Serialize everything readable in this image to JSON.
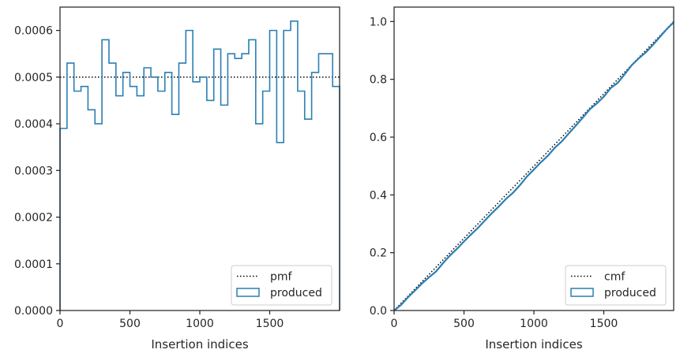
{
  "colors": {
    "produced": "#2b7fb3",
    "reference": "#000000",
    "axes": "#262626",
    "legend_border": "#cccccc"
  },
  "chart_data": [
    {
      "type": "step",
      "xlabel": "Insertion indices",
      "ylabel": "",
      "xlim": [
        0,
        2000
      ],
      "ylim": [
        0,
        0.00065
      ],
      "xticks": [
        0,
        500,
        1000,
        1500
      ],
      "xtick_labels": [
        "0",
        "500",
        "1000",
        "1500"
      ],
      "yticks": [
        0,
        0.0001,
        0.0002,
        0.0003,
        0.0004,
        0.0005,
        0.0006
      ],
      "ytick_labels": [
        "0.0000",
        "0.0001",
        "0.0002",
        "0.0003",
        "0.0004",
        "0.0005",
        "0.0006"
      ],
      "legend_position": "lower-right",
      "legend": [
        {
          "label": "pmf",
          "style": "dotted-line"
        },
        {
          "label": "produced",
          "style": "outline-box"
        }
      ],
      "reference_line": {
        "name": "pmf",
        "y": 0.0005,
        "x": [
          0,
          2000
        ]
      },
      "series": {
        "name": "produced",
        "bin_width": 50,
        "bin_start": 0,
        "values": [
          0.00039,
          0.00053,
          0.00047,
          0.00048,
          0.00043,
          0.0004,
          0.00058,
          0.00053,
          0.00046,
          0.00051,
          0.00048,
          0.00046,
          0.00052,
          0.0005,
          0.00047,
          0.00051,
          0.00042,
          0.00053,
          0.0006,
          0.00049,
          0.0005,
          0.00045,
          0.00056,
          0.00044,
          0.00055,
          0.00054,
          0.00055,
          0.00058,
          0.0004,
          0.00047,
          0.0006,
          0.00036,
          0.0006,
          0.00062,
          0.00047,
          0.00041,
          0.00051,
          0.00055,
          0.00055,
          0.00048
        ]
      }
    },
    {
      "type": "line",
      "xlabel": "Insertion indices",
      "ylabel": "",
      "xlim": [
        0,
        2000
      ],
      "ylim": [
        0,
        1.05
      ],
      "xticks": [
        0,
        500,
        1000,
        1500
      ],
      "xtick_labels": [
        "0",
        "500",
        "1000",
        "1500"
      ],
      "yticks": [
        0,
        0.2,
        0.4,
        0.6,
        0.8,
        1.0
      ],
      "ytick_labels": [
        "0.0",
        "0.2",
        "0.4",
        "0.6",
        "0.8",
        "1.0"
      ],
      "legend_position": "lower-right",
      "legend": [
        {
          "label": "cmf",
          "style": "dotted-line"
        },
        {
          "label": "produced",
          "style": "outline-box"
        }
      ],
      "reference_line": {
        "name": "cmf",
        "x": [
          0,
          2000
        ],
        "y": [
          0,
          1.0
        ]
      },
      "series": {
        "name": "produced",
        "x": [
          0,
          50,
          100,
          150,
          200,
          250,
          300,
          350,
          400,
          450,
          500,
          550,
          600,
          650,
          700,
          750,
          800,
          850,
          900,
          950,
          1000,
          1050,
          1100,
          1150,
          1200,
          1250,
          1300,
          1350,
          1400,
          1450,
          1500,
          1550,
          1600,
          1650,
          1700,
          1750,
          1800,
          1850,
          1900,
          1950,
          2000
        ],
        "y": [
          0,
          0.0195,
          0.046,
          0.0695,
          0.0935,
          0.115,
          0.135,
          0.164,
          0.1905,
          0.2135,
          0.239,
          0.263,
          0.286,
          0.312,
          0.337,
          0.3605,
          0.386,
          0.407,
          0.4335,
          0.4635,
          0.488,
          0.513,
          0.5355,
          0.5635,
          0.5855,
          0.613,
          0.64,
          0.6675,
          0.6965,
          0.7165,
          0.74,
          0.77,
          0.788,
          0.818,
          0.849,
          0.8725,
          0.893,
          0.9185,
          0.946,
          0.9735,
          0.9975
        ]
      }
    }
  ]
}
